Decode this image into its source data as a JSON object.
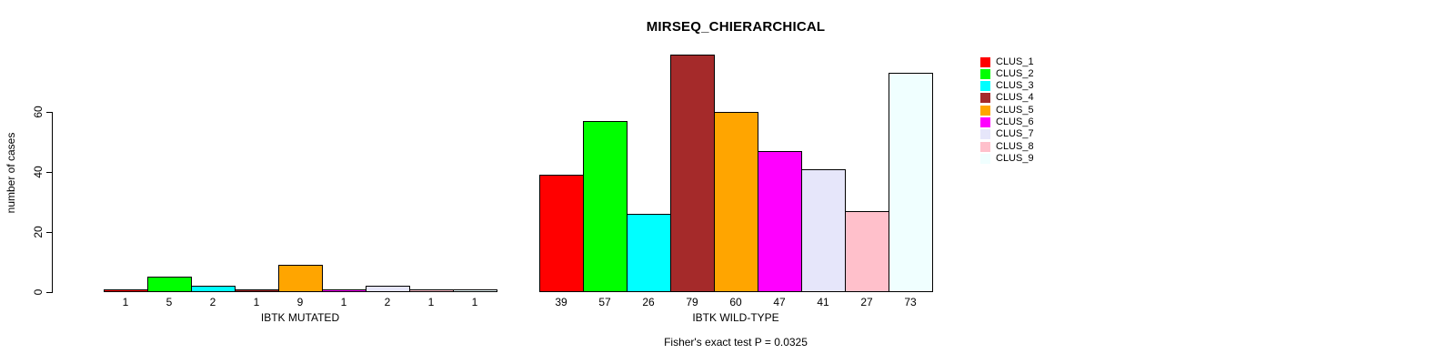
{
  "chart_data": {
    "type": "bar",
    "title": "MIRSEQ_CHIERARCHICAL",
    "ylabel": "number of cases",
    "caption": "Fisher's exact test P = 0.0325",
    "yticks": [
      0,
      20,
      40,
      60
    ],
    "ylim": [
      0,
      80
    ],
    "grid": false,
    "legend_position": "top-right",
    "legend": [
      {
        "label": "CLUS_1",
        "color": "#FF0000"
      },
      {
        "label": "CLUS_2",
        "color": "#00FF00"
      },
      {
        "label": "CLUS_3",
        "color": "#00FFFF"
      },
      {
        "label": "CLUS_4",
        "color": "#A52A2A"
      },
      {
        "label": "CLUS_5",
        "color": "#FFA500"
      },
      {
        "label": "CLUS_6",
        "color": "#FF00FF"
      },
      {
        "label": "CLUS_7",
        "color": "#E6E6FA"
      },
      {
        "label": "CLUS_8",
        "color": "#FFC0CB"
      },
      {
        "label": "CLUS_9",
        "color": "#F0FFFF"
      }
    ],
    "groups": [
      {
        "label": "IBTK MUTATED",
        "values": [
          1,
          5,
          2,
          1,
          9,
          1,
          2,
          1,
          1
        ]
      },
      {
        "label": "IBTK WILD-TYPE",
        "values": [
          39,
          57,
          26,
          79,
          60,
          47,
          41,
          27,
          73
        ]
      }
    ]
  }
}
